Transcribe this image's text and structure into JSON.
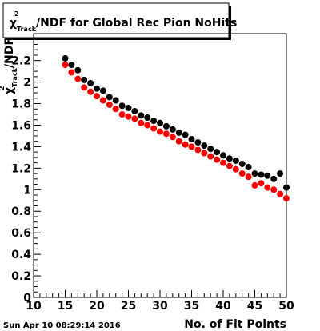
{
  "chart_data": {
    "type": "scatter",
    "title": {
      "prefix": "χ",
      "exp": "2",
      "sub": "Track",
      "rest": "/NDF for Global Rec Pion NoHits"
    },
    "xlabel": "No. of Fit Points",
    "ylabel": {
      "prefix": "χ",
      "exp": "2",
      "sub": "Track",
      "rest": "/NDF"
    },
    "xlim": [
      10,
      50
    ],
    "ylim": [
      0,
      2.45
    ],
    "x_ticks": [
      10,
      15,
      20,
      25,
      30,
      35,
      40,
      45,
      50
    ],
    "y_ticks": [
      0,
      0.2,
      0.4,
      0.6,
      0.8,
      1,
      1.2,
      1.4,
      1.6,
      1.8,
      2,
      2.2
    ],
    "x": [
      15,
      16,
      17,
      18,
      19,
      20,
      21,
      22,
      23,
      24,
      25,
      26,
      27,
      28,
      29,
      30,
      31,
      32,
      33,
      34,
      35,
      36,
      37,
      38,
      39,
      40,
      41,
      42,
      43,
      44,
      45,
      46,
      47,
      48,
      49,
      50
    ],
    "series": [
      {
        "color": "#000000",
        "values": [
          2.22,
          2.16,
          2.11,
          2.02,
          1.99,
          1.94,
          1.92,
          1.86,
          1.83,
          1.78,
          1.76,
          1.73,
          1.69,
          1.67,
          1.64,
          1.62,
          1.59,
          1.56,
          1.53,
          1.51,
          1.47,
          1.44,
          1.41,
          1.38,
          1.35,
          1.32,
          1.29,
          1.27,
          1.24,
          1.21,
          1.15,
          1.14,
          1.13,
          1.1,
          1.15,
          1.02
        ]
      },
      {
        "color": "#ff0000",
        "values": [
          2.16,
          2.09,
          2.03,
          1.95,
          1.91,
          1.87,
          1.83,
          1.79,
          1.75,
          1.7,
          1.68,
          1.66,
          1.62,
          1.6,
          1.57,
          1.54,
          1.52,
          1.49,
          1.45,
          1.42,
          1.4,
          1.37,
          1.34,
          1.31,
          1.28,
          1.25,
          1.22,
          1.19,
          1.15,
          1.12,
          1.04,
          1.06,
          1.02,
          1.0,
          0.96,
          0.92
        ]
      }
    ],
    "grid": false,
    "legend": "none"
  },
  "footer": {
    "datestamp": "Sun Apr 10 08:29:14 2016"
  }
}
